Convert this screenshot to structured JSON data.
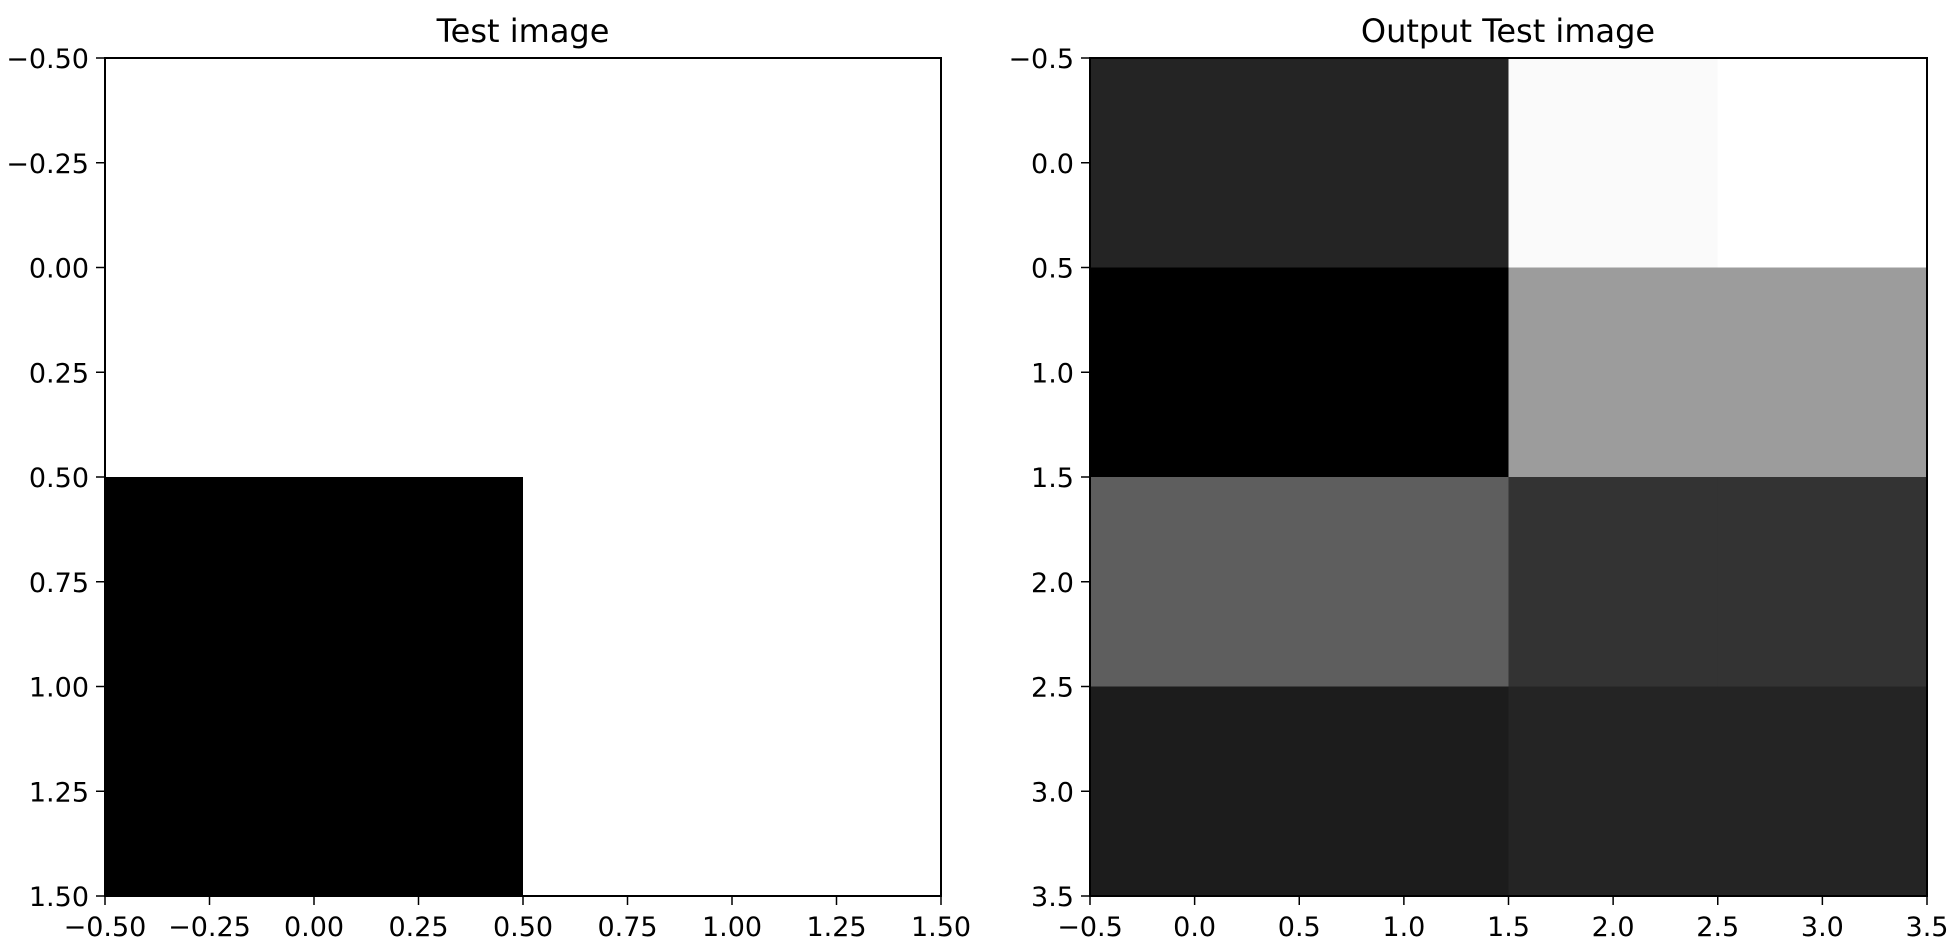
{
  "chart_data": [
    {
      "type": "heatmap",
      "title": "Test image",
      "xlim": [
        -0.5,
        1.5
      ],
      "ylim": [
        1.5,
        -0.5
      ],
      "y_inverted": true,
      "colormap": "gray",
      "cmap_range": [
        0,
        1
      ],
      "x_ticks": [
        -0.5,
        -0.25,
        0.0,
        0.25,
        0.5,
        0.75,
        1.0,
        1.25,
        1.5
      ],
      "x_tick_labels": [
        "−0.50",
        "−0.25",
        "0.00",
        "0.25",
        "0.50",
        "0.75",
        "1.00",
        "1.25",
        "1.50"
      ],
      "y_ticks": [
        -0.5,
        -0.25,
        0.0,
        0.25,
        0.5,
        0.75,
        1.0,
        1.25,
        1.5
      ],
      "y_tick_labels": [
        "−0.50",
        "−0.25",
        "0.00",
        "0.25",
        "0.50",
        "0.75",
        "1.00",
        "1.25",
        "1.50"
      ],
      "matrix": [
        [
          1.0,
          1.0
        ],
        [
          0.0,
          1.0
        ]
      ]
    },
    {
      "type": "heatmap",
      "title": "Output Test image",
      "xlim": [
        -0.5,
        3.5
      ],
      "ylim": [
        3.5,
        -0.5
      ],
      "y_inverted": true,
      "colormap": "gray",
      "cmap_range": [
        0,
        1
      ],
      "x_ticks": [
        -0.5,
        0.0,
        0.5,
        1.0,
        1.5,
        2.0,
        2.5,
        3.0,
        3.5
      ],
      "x_tick_labels": [
        "−0.5",
        "0.0",
        "0.5",
        "1.0",
        "1.5",
        "2.0",
        "2.5",
        "3.0",
        "3.5"
      ],
      "y_ticks": [
        -0.5,
        0.0,
        0.5,
        1.0,
        1.5,
        2.0,
        2.5,
        3.0,
        3.5
      ],
      "y_tick_labels": [
        "−0.5",
        "0.0",
        "0.5",
        "1.0",
        "1.5",
        "2.0",
        "2.5",
        "3.0",
        "3.5"
      ],
      "matrix": [
        [
          0.14,
          0.14,
          0.98,
          1.0
        ],
        [
          0.0,
          0.0,
          0.61,
          0.61
        ],
        [
          0.37,
          0.37,
          0.2,
          0.2
        ],
        [
          0.11,
          0.11,
          0.14,
          0.14
        ]
      ]
    }
  ]
}
